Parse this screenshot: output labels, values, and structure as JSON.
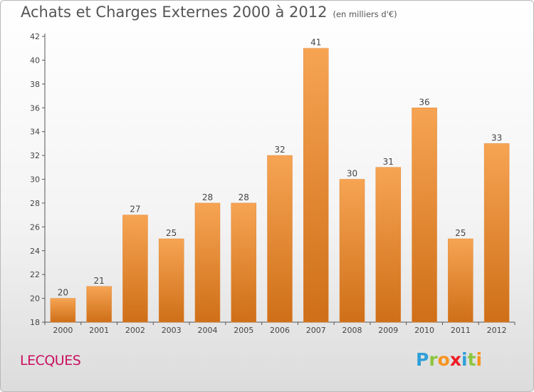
{
  "title": "Achats et Charges Externes 2000 à 2012",
  "subtitle": "(en milliers d'€)",
  "commune": "LECQUES",
  "logo": {
    "text": "Proxiti",
    "letters": [
      {
        "ch": "P",
        "color": "#2f9fd8"
      },
      {
        "ch": "r",
        "color": "#8cc63f"
      },
      {
        "ch": "o",
        "color": "#f7941d"
      },
      {
        "ch": "x",
        "color": "#ed1c24"
      },
      {
        "ch": "i",
        "color": "#2f9fd8"
      },
      {
        "ch": "t",
        "color": "#8cc63f"
      },
      {
        "ch": "i",
        "color": "#f7941d"
      }
    ]
  },
  "colors": {
    "bar_light": "#f6a453",
    "bar_dark": "#cf6f18",
    "title": "#555555",
    "commune": "#c8115f"
  },
  "chart_data": {
    "type": "bar",
    "title": "Achats et Charges Externes 2000 à 2012",
    "subtitle": "(en milliers d'€)",
    "categories": [
      "2000",
      "2001",
      "2002",
      "2003",
      "2004",
      "2005",
      "2006",
      "2007",
      "2008",
      "2009",
      "2010",
      "2011",
      "2012"
    ],
    "values": [
      20,
      21,
      27,
      25,
      28,
      28,
      32,
      41,
      30,
      31,
      36,
      25,
      33
    ],
    "ylim": [
      18,
      42
    ],
    "yticks": [
      18,
      20,
      22,
      24,
      26,
      28,
      30,
      32,
      34,
      36,
      38,
      40,
      42
    ],
    "xlabel": "",
    "ylabel": "",
    "grid": false,
    "legend": "none"
  }
}
